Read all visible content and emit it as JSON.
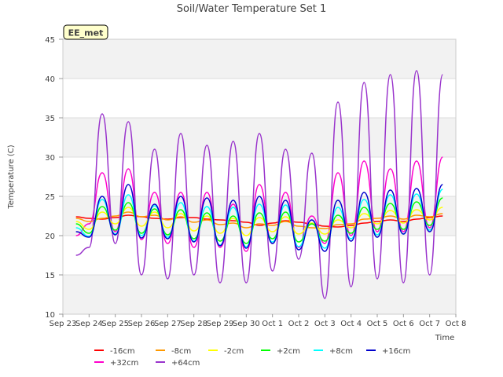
{
  "chart_data": {
    "type": "line",
    "title": "Soil/Water Temperature Set 1",
    "xlabel": "Time",
    "ylabel": "Temperature (C)",
    "ylim": [
      10,
      45
    ],
    "yticks": [
      10,
      15,
      20,
      25,
      30,
      35,
      40,
      45
    ],
    "x_domain": [
      "Sep 23",
      "Oct 8"
    ],
    "xticks": [
      "Sep 23",
      "Sep 24",
      "Sep 25",
      "Sep 26",
      "Sep 27",
      "Sep 28",
      "Sep 29",
      "Sep 30",
      "Oct 1",
      "Oct 2",
      "Oct 3",
      "Oct 4",
      "Oct 5",
      "Oct 6",
      "Oct 7",
      "Oct 8"
    ],
    "grid": true,
    "legend_position": "bottom",
    "station_label": "EE_met",
    "x_values": [
      "Sep 23 12:00",
      "Sep 24 00:00",
      "Sep 24 12:00",
      "Sep 25 00:00",
      "Sep 25 12:00",
      "Sep 26 00:00",
      "Sep 26 12:00",
      "Sep 27 00:00",
      "Sep 27 12:00",
      "Sep 28 00:00",
      "Sep 28 12:00",
      "Sep 29 00:00",
      "Sep 29 12:00",
      "Sep 30 00:00",
      "Sep 30 12:00",
      "Oct 1 00:00",
      "Oct 1 12:00",
      "Oct 2 00:00",
      "Oct 2 12:00",
      "Oct 3 00:00",
      "Oct 3 12:00",
      "Oct 4 00:00",
      "Oct 4 12:00",
      "Oct 5 00:00",
      "Oct 5 12:00",
      "Oct 6 00:00",
      "Oct 6 12:00",
      "Oct 7 00:00",
      "Oct 7 12:00"
    ],
    "series": [
      {
        "name": "-16cm",
        "color": "#ff0000",
        "values": [
          22.4,
          22.2,
          22.1,
          22.3,
          22.6,
          22.4,
          22.2,
          22.1,
          22.3,
          22.3,
          22.1,
          22.0,
          21.9,
          21.7,
          21.3,
          21.6,
          21.9,
          21.7,
          21.5,
          21.2,
          21.1,
          21.3,
          21.6,
          21.8,
          22.0,
          21.8,
          22.1,
          22.3,
          22.5
        ]
      },
      {
        "name": "+32cm",
        "color": "#ff00cc",
        "values": [
          20.0,
          21.5,
          28.0,
          20.5,
          28.5,
          19.5,
          25.5,
          19.0,
          25.5,
          18.5,
          25.5,
          18.5,
          24.0,
          18.0,
          26.5,
          19.0,
          25.5,
          18.5,
          22.5,
          19.0,
          28.0,
          20.0,
          29.5,
          20.5,
          28.5,
          20.5,
          29.5,
          21.0,
          30.0
        ]
      },
      {
        "name": "-8cm",
        "color": "#ff9900",
        "values": [
          22.2,
          21.8,
          22.2,
          22.5,
          23.0,
          22.4,
          22.6,
          22.0,
          22.4,
          21.7,
          22.0,
          21.4,
          21.6,
          21.0,
          21.5,
          21.3,
          21.8,
          21.2,
          21.0,
          20.9,
          21.4,
          21.5,
          22.1,
          22.2,
          22.5,
          22.1,
          22.6,
          22.4,
          22.8
        ]
      },
      {
        "name": "+64cm",
        "color": "#9933cc",
        "values": [
          17.5,
          18.5,
          35.5,
          19.0,
          34.5,
          15.0,
          31.0,
          14.5,
          33.0,
          15.0,
          31.5,
          14.0,
          32.0,
          14.0,
          33.0,
          15.5,
          31.0,
          17.0,
          30.5,
          12.0,
          37.0,
          13.5,
          39.5,
          14.5,
          40.5,
          14.0,
          41.0,
          15.0,
          40.5
        ]
      },
      {
        "name": "-2cm",
        "color": "#ffff00",
        "values": [
          21.8,
          20.8,
          23.0,
          21.5,
          23.6,
          21.2,
          23.0,
          21.0,
          22.8,
          20.6,
          22.5,
          20.3,
          22.2,
          20.0,
          22.3,
          20.5,
          22.4,
          20.2,
          21.6,
          20.2,
          22.0,
          21.0,
          22.8,
          21.5,
          23.2,
          21.6,
          23.3,
          22.0,
          23.6
        ]
      },
      {
        "name": "+2cm",
        "color": "#00ff00",
        "values": [
          21.5,
          20.3,
          23.7,
          20.7,
          24.2,
          20.3,
          23.4,
          20.1,
          23.3,
          19.6,
          22.9,
          19.3,
          22.5,
          19.0,
          22.9,
          19.6,
          23.0,
          19.2,
          21.5,
          19.3,
          22.6,
          20.3,
          23.6,
          20.8,
          24.1,
          20.8,
          24.3,
          21.3,
          24.8
        ]
      },
      {
        "name": "+8cm",
        "color": "#00ffff",
        "values": [
          21.0,
          19.9,
          24.6,
          20.2,
          25.2,
          20.0,
          23.8,
          19.8,
          24.2,
          19.3,
          23.7,
          18.8,
          23.6,
          18.6,
          24.0,
          19.2,
          23.9,
          18.6,
          22.0,
          18.4,
          23.6,
          19.6,
          24.6,
          20.1,
          25.2,
          20.2,
          25.3,
          20.7,
          25.9
        ]
      },
      {
        "name": "+16cm",
        "color": "#0000cc",
        "values": [
          20.5,
          19.8,
          25.0,
          20.1,
          26.5,
          19.7,
          24.0,
          19.6,
          25.0,
          19.2,
          24.8,
          18.7,
          24.5,
          18.4,
          25.0,
          19.0,
          24.5,
          18.2,
          22.0,
          18.0,
          24.5,
          19.3,
          25.5,
          19.8,
          25.8,
          20.2,
          26.0,
          20.5,
          26.5
        ]
      }
    ]
  }
}
